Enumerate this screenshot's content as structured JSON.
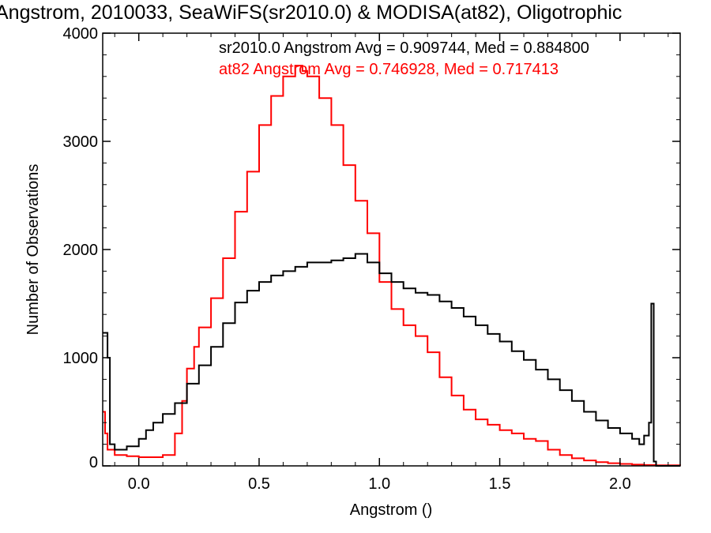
{
  "chart_data": {
    "type": "histogram",
    "title": "Angstrom, 2010033, SeaWiFS(sr2010.0) & MODISA(at82), Oligotrophic",
    "xlabel": "Angstrom ()",
    "ylabel": "Number of Observations",
    "xlim": [
      -0.15,
      2.25
    ],
    "ylim": [
      0,
      4000
    ],
    "x_ticks": [
      0.0,
      0.5,
      1.0,
      1.5,
      2.0
    ],
    "x_tick_labels": [
      "0.0",
      "0.5",
      "1.0",
      "1.5",
      "2.0"
    ],
    "y_ticks": [
      0,
      1000,
      2000,
      3000,
      4000
    ],
    "y_tick_labels": [
      "0",
      "1000",
      "2000",
      "3000",
      "4000"
    ],
    "annotations": [
      {
        "text": "sr2010.0 Angstrom Avg = 0.909744, Med = 0.884800",
        "color": "#000000"
      },
      {
        "text": "at82 Angstrom Avg = 0.746928, Med = 0.717413",
        "color": "#ff0000"
      }
    ],
    "series": [
      {
        "color": "#000000",
        "x": [
          -0.15,
          -0.13,
          -0.12,
          -0.1,
          -0.05,
          0.0,
          0.03,
          0.06,
          0.1,
          0.15,
          0.2,
          0.25,
          0.3,
          0.35,
          0.4,
          0.45,
          0.5,
          0.55,
          0.6,
          0.65,
          0.7,
          0.75,
          0.8,
          0.85,
          0.9,
          0.95,
          1.0,
          1.05,
          1.1,
          1.15,
          1.2,
          1.25,
          1.3,
          1.35,
          1.4,
          1.45,
          1.5,
          1.55,
          1.6,
          1.65,
          1.7,
          1.75,
          1.8,
          1.85,
          1.9,
          1.95,
          2.0,
          2.05,
          2.08,
          2.1,
          2.12,
          2.13,
          2.14,
          2.15,
          2.2,
          2.25
        ],
        "y": [
          1230,
          1000,
          200,
          150,
          180,
          250,
          330,
          400,
          480,
          580,
          760,
          930,
          1100,
          1320,
          1510,
          1620,
          1700,
          1760,
          1800,
          1840,
          1880,
          1880,
          1900,
          1920,
          1960,
          1880,
          1780,
          1700,
          1640,
          1600,
          1580,
          1520,
          1460,
          1380,
          1300,
          1220,
          1150,
          1060,
          980,
          890,
          800,
          700,
          600,
          500,
          420,
          350,
          300,
          250,
          200,
          280,
          400,
          1500,
          40,
          0,
          0,
          0
        ]
      },
      {
        "color": "#ff0000",
        "x": [
          -0.15,
          -0.14,
          -0.13,
          -0.1,
          -0.05,
          0.0,
          0.05,
          0.1,
          0.15,
          0.18,
          0.2,
          0.23,
          0.25,
          0.3,
          0.35,
          0.4,
          0.45,
          0.5,
          0.55,
          0.6,
          0.65,
          0.68,
          0.7,
          0.75,
          0.8,
          0.85,
          0.9,
          0.95,
          1.0,
          1.05,
          1.1,
          1.15,
          1.2,
          1.25,
          1.3,
          1.35,
          1.4,
          1.45,
          1.5,
          1.55,
          1.6,
          1.65,
          1.7,
          1.75,
          1.8,
          1.85,
          1.9,
          1.95,
          2.0,
          2.05,
          2.1,
          2.15,
          2.2,
          2.25
        ],
        "y": [
          500,
          300,
          150,
          100,
          90,
          80,
          80,
          100,
          300,
          600,
          900,
          1100,
          1280,
          1550,
          1920,
          2350,
          2720,
          3150,
          3420,
          3600,
          3700,
          3650,
          3600,
          3400,
          3150,
          2780,
          2450,
          2150,
          1700,
          1450,
          1300,
          1200,
          1050,
          820,
          650,
          520,
          430,
          380,
          330,
          300,
          250,
          230,
          150,
          100,
          70,
          50,
          35,
          25,
          18,
          12,
          8,
          6,
          5,
          3
        ]
      }
    ]
  }
}
